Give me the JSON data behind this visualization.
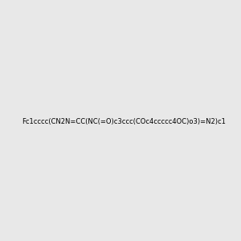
{
  "smiles": "Fc1cccc(CN2N=CC(NC(=O)c3ccc(COc4ccccc4OC)o3)=N2)c1",
  "bg_color": "#e8e8e8",
  "figsize": [
    3.0,
    3.0
  ],
  "dpi": 100,
  "img_size": [
    300,
    300
  ]
}
